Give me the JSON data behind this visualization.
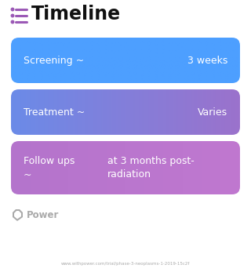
{
  "title": "Timeline",
  "title_icon_color": "#9b59b6",
  "background_color": "#ffffff",
  "rows": [
    {
      "label_left": "Screening ~",
      "label_right": "3 weeks",
      "color_left": "#4d9fff",
      "color_right": "#4d9fff",
      "gradient": "blue"
    },
    {
      "label_left": "Treatment ~",
      "label_right": "Varies",
      "color_left": "#6b8be8",
      "color_right": "#9b72cc",
      "gradient": "blue_purple"
    },
    {
      "label_left_line1": "Follow ups",
      "label_left_line2": "~",
      "label_right_line1": "at 3 months post-",
      "label_right_line2": "radiation",
      "color_left": "#b474cc",
      "color_right": "#c078d0",
      "gradient": "purple"
    }
  ],
  "watermark_text": "Power",
  "watermark_color": "#aaaaaa",
  "footer_text": "www.withpower.com/trial/phase-3-neoplasms-1-2019-15c2f",
  "footer_color": "#aaaaaa",
  "fig_width": 3.2,
  "fig_height": 3.47,
  "dpi": 100
}
